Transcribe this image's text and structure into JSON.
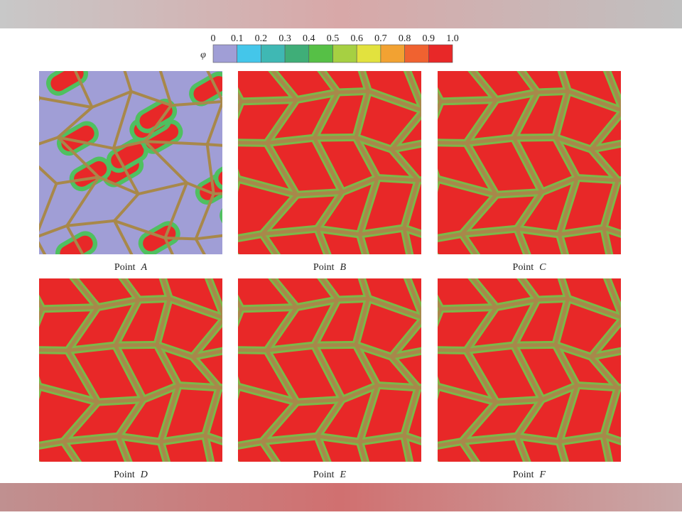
{
  "colorbar": {
    "symbol": "φ",
    "ticks": [
      "0",
      "0.1",
      "0.2",
      "0.3",
      "0.4",
      "0.5",
      "0.6",
      "0.7",
      "0.8",
      "0.9",
      "1.0"
    ]
  },
  "panels": [
    {
      "label": "Point",
      "letter": "A"
    },
    {
      "label": "Point",
      "letter": "B"
    },
    {
      "label": "Point",
      "letter": "C"
    },
    {
      "label": "Point",
      "letter": "D"
    },
    {
      "label": "Point",
      "letter": "E"
    },
    {
      "label": "Point",
      "letter": "F"
    }
  ]
}
